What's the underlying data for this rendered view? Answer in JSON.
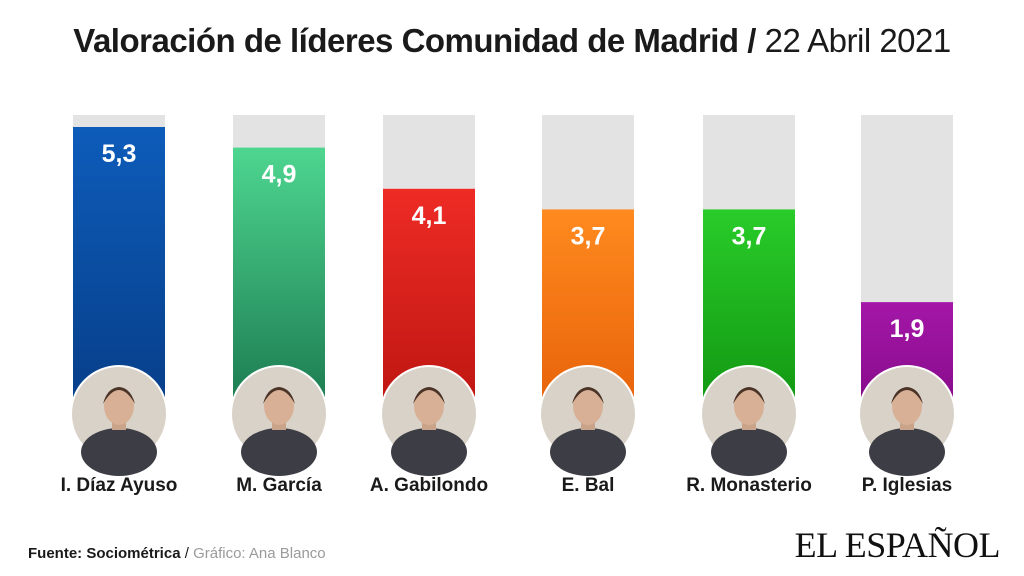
{
  "title": {
    "main": "Valoración de líderes Comunidad de Madrid",
    "separator": "/",
    "date": "22 Abril 2021"
  },
  "chart_data": {
    "type": "bar",
    "categories": [
      "I. Díaz Ayuso",
      "M. García",
      "A. Gabilondo",
      "E. Bal",
      "R. Monasterio",
      "P. Iglesias"
    ],
    "values": [
      5.3,
      4.9,
      4.1,
      3.7,
      3.7,
      1.9
    ],
    "value_labels": [
      "5,3",
      "4,9",
      "4,1",
      "3,7",
      "3,7",
      "1,9"
    ],
    "ylim": [
      0,
      5.3
    ],
    "colors": [
      [
        "#0d5cba",
        "#073f8a"
      ],
      [
        "#4ed690",
        "#1d7d52"
      ],
      [
        "#ee2b25",
        "#c01712"
      ],
      [
        "#ff8a1f",
        "#e8640a"
      ],
      [
        "#29cc29",
        "#139913"
      ],
      [
        "#a417a8",
        "#880c8c"
      ]
    ],
    "background_color": "#e3e3e3",
    "grid": false,
    "legend": "none"
  },
  "footer": {
    "source": "Fuente: Sociométrica",
    "separator": " / ",
    "credit": "Gráfico: Ana Blanco"
  },
  "logo": "EL ESPAÑOL"
}
